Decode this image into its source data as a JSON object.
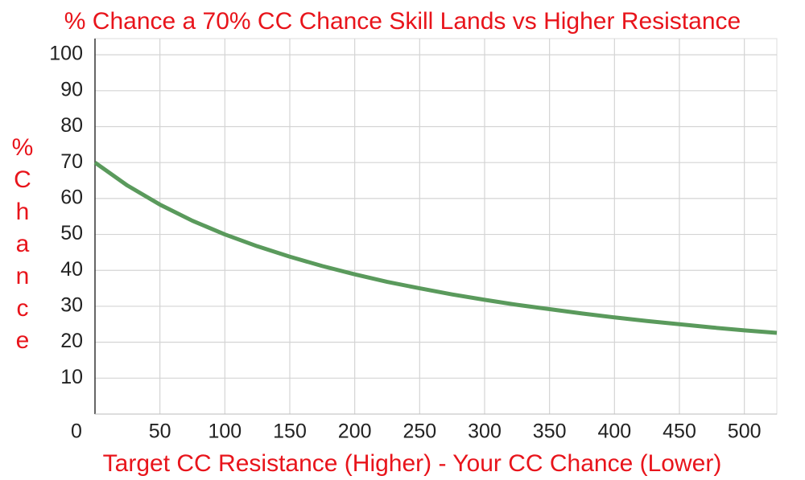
{
  "chart_data": {
    "type": "line",
    "title": "% Chance a 70% CC Chance Skill Lands vs Higher Resistance",
    "xlabel": "Target CC Resistance (Higher) - Your CC Chance (Lower)",
    "ylabel": "% Chance",
    "x": [
      0,
      25,
      50,
      75,
      100,
      125,
      150,
      175,
      200,
      225,
      250,
      275,
      300,
      325,
      350,
      375,
      400,
      425,
      450,
      475,
      500,
      525
    ],
    "series": [
      {
        "color": "#5a9a5c",
        "values": [
          70,
          63.6,
          58.3,
          53.8,
          50,
          46.7,
          43.8,
          41.2,
          38.9,
          36.8,
          35,
          33.3,
          31.8,
          30.4,
          29.2,
          28,
          26.9,
          25.9,
          25,
          24.1,
          23.3,
          22.6
        ]
      }
    ],
    "xlim": [
      0,
      525
    ],
    "ylim": [
      0,
      104.5
    ],
    "xticks": [
      0,
      50,
      100,
      150,
      200,
      250,
      300,
      350,
      400,
      450,
      500
    ],
    "yticks": [
      10,
      20,
      30,
      40,
      50,
      60,
      70,
      80,
      90,
      100
    ],
    "grid": true
  }
}
